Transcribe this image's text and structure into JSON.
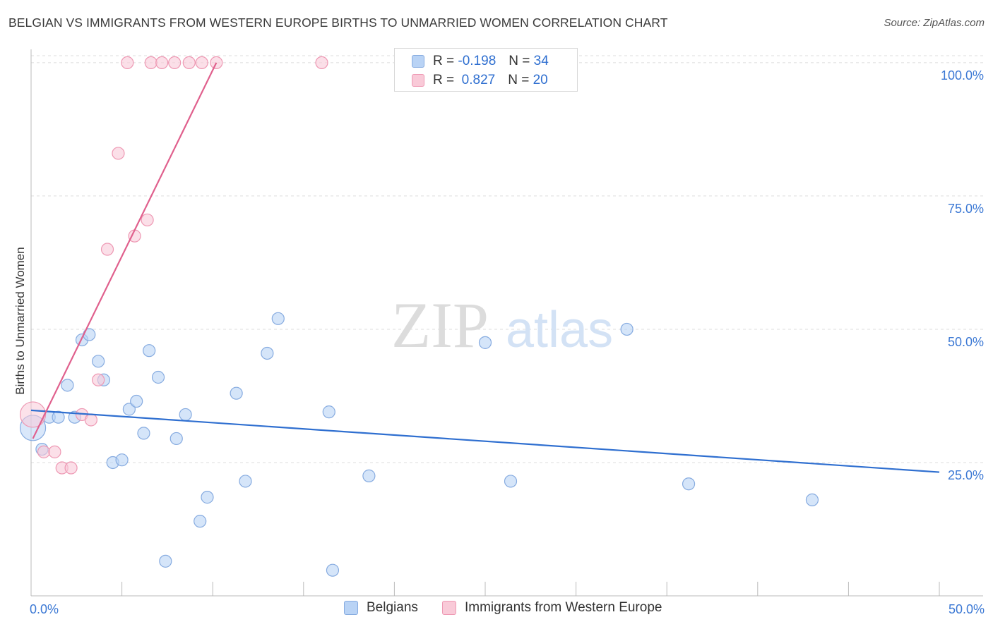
{
  "title": "BELGIAN VS IMMIGRANTS FROM WESTERN EUROPE BIRTHS TO UNMARRIED WOMEN CORRELATION CHART",
  "source": "Source: ZipAtlas.com",
  "watermark": {
    "zip": "ZIP",
    "atlas": "atlas"
  },
  "colors": {
    "blue_fill": "#b9d3f5",
    "blue_stroke": "#86abe0",
    "blue_line": "#2f6fd0",
    "pink_fill": "#f9cad8",
    "pink_stroke": "#ee98b3",
    "pink_line": "#e0608d",
    "tick_label": "#3b78d4",
    "grid": "#dcdcdc",
    "axis": "#bbbbbb"
  },
  "legend": {
    "blue": {
      "r_label": "R =",
      "r_value": "-0.198",
      "n_label": "N =",
      "n_value": "34"
    },
    "pink": {
      "r_label": "R =",
      "r_value": "0.827",
      "n_label": "N =",
      "n_value": "20"
    }
  },
  "chart_data": {
    "type": "scatter",
    "title": "BELGIAN VS IMMIGRANTS FROM WESTERN EUROPE BIRTHS TO UNMARRIED WOMEN CORRELATION CHART",
    "xlabel": "",
    "ylabel": "Births to Unmarried Women",
    "xlim": [
      0,
      50
    ],
    "ylim": [
      0,
      102.5
    ],
    "x_tick_labels": [
      {
        "value": 0,
        "label": "0.0%"
      },
      {
        "value": 50,
        "label": "50.0%"
      }
    ],
    "x_minor_ticks": [
      5,
      10,
      15,
      20,
      25,
      30,
      35,
      40,
      45,
      50
    ],
    "y_ticks": [
      {
        "value": 25,
        "label": "25.0%"
      },
      {
        "value": 50,
        "label": "50.0%"
      },
      {
        "value": 75,
        "label": "75.0%"
      },
      {
        "value": 100,
        "label": "100.0%"
      }
    ],
    "grid": true,
    "series": [
      {
        "name": "Belgians",
        "color": "#b9d3f5",
        "points": [
          {
            "x": 0.1,
            "y": 31.5,
            "big": true
          },
          {
            "x": 0.6,
            "y": 27.5
          },
          {
            "x": 1.0,
            "y": 33.5
          },
          {
            "x": 1.5,
            "y": 33.5
          },
          {
            "x": 2.0,
            "y": 39.5
          },
          {
            "x": 2.4,
            "y": 33.5
          },
          {
            "x": 2.8,
            "y": 48.0
          },
          {
            "x": 3.2,
            "y": 49.0
          },
          {
            "x": 3.7,
            "y": 44.0
          },
          {
            "x": 4.0,
            "y": 40.5
          },
          {
            "x": 4.5,
            "y": 25.0
          },
          {
            "x": 5.0,
            "y": 25.5
          },
          {
            "x": 5.4,
            "y": 35.0
          },
          {
            "x": 5.8,
            "y": 36.5
          },
          {
            "x": 6.2,
            "y": 30.5
          },
          {
            "x": 6.5,
            "y": 46.0
          },
          {
            "x": 7.0,
            "y": 41.0
          },
          {
            "x": 7.4,
            "y": 6.5
          },
          {
            "x": 8.0,
            "y": 29.5
          },
          {
            "x": 8.5,
            "y": 34.0
          },
          {
            "x": 9.3,
            "y": 14.0
          },
          {
            "x": 9.7,
            "y": 18.5
          },
          {
            "x": 11.3,
            "y": 38.0
          },
          {
            "x": 11.8,
            "y": 21.5
          },
          {
            "x": 13.0,
            "y": 45.5
          },
          {
            "x": 13.6,
            "y": 52.0
          },
          {
            "x": 16.4,
            "y": 34.5
          },
          {
            "x": 16.6,
            "y": 4.8
          },
          {
            "x": 18.6,
            "y": 22.5
          },
          {
            "x": 25.0,
            "y": 47.5
          },
          {
            "x": 26.4,
            "y": 21.5
          },
          {
            "x": 32.8,
            "y": 50.0
          },
          {
            "x": 36.2,
            "y": 21.0
          },
          {
            "x": 43.0,
            "y": 18.0
          }
        ],
        "trend": {
          "x": [
            0.0,
            50.0
          ],
          "y": [
            34.8,
            23.2
          ]
        }
      },
      {
        "name": "Immigrants from Western Europe",
        "color": "#f9cad8",
        "points": [
          {
            "x": 0.1,
            "y": 34.0,
            "big": true
          },
          {
            "x": 0.7,
            "y": 27.0
          },
          {
            "x": 1.3,
            "y": 27.0
          },
          {
            "x": 1.7,
            "y": 24.0
          },
          {
            "x": 2.2,
            "y": 24.0
          },
          {
            "x": 2.8,
            "y": 34.0
          },
          {
            "x": 3.3,
            "y": 33.0
          },
          {
            "x": 3.7,
            "y": 40.5
          },
          {
            "x": 4.2,
            "y": 65.0
          },
          {
            "x": 4.8,
            "y": 83.0
          },
          {
            "x": 5.3,
            "y": 100.0
          },
          {
            "x": 5.7,
            "y": 67.5
          },
          {
            "x": 6.4,
            "y": 70.5
          },
          {
            "x": 6.6,
            "y": 100.0
          },
          {
            "x": 7.2,
            "y": 100.0
          },
          {
            "x": 7.9,
            "y": 100.0
          },
          {
            "x": 8.7,
            "y": 100.0
          },
          {
            "x": 9.4,
            "y": 100.0
          },
          {
            "x": 10.2,
            "y": 100.0
          },
          {
            "x": 16.0,
            "y": 100.0
          }
        ],
        "trend": {
          "x": [
            0.1,
            10.2
          ],
          "y": [
            29.5,
            100.0
          ]
        }
      }
    ],
    "bottom_legend": [
      "Belgians",
      "Immigrants from Western Europe"
    ]
  }
}
